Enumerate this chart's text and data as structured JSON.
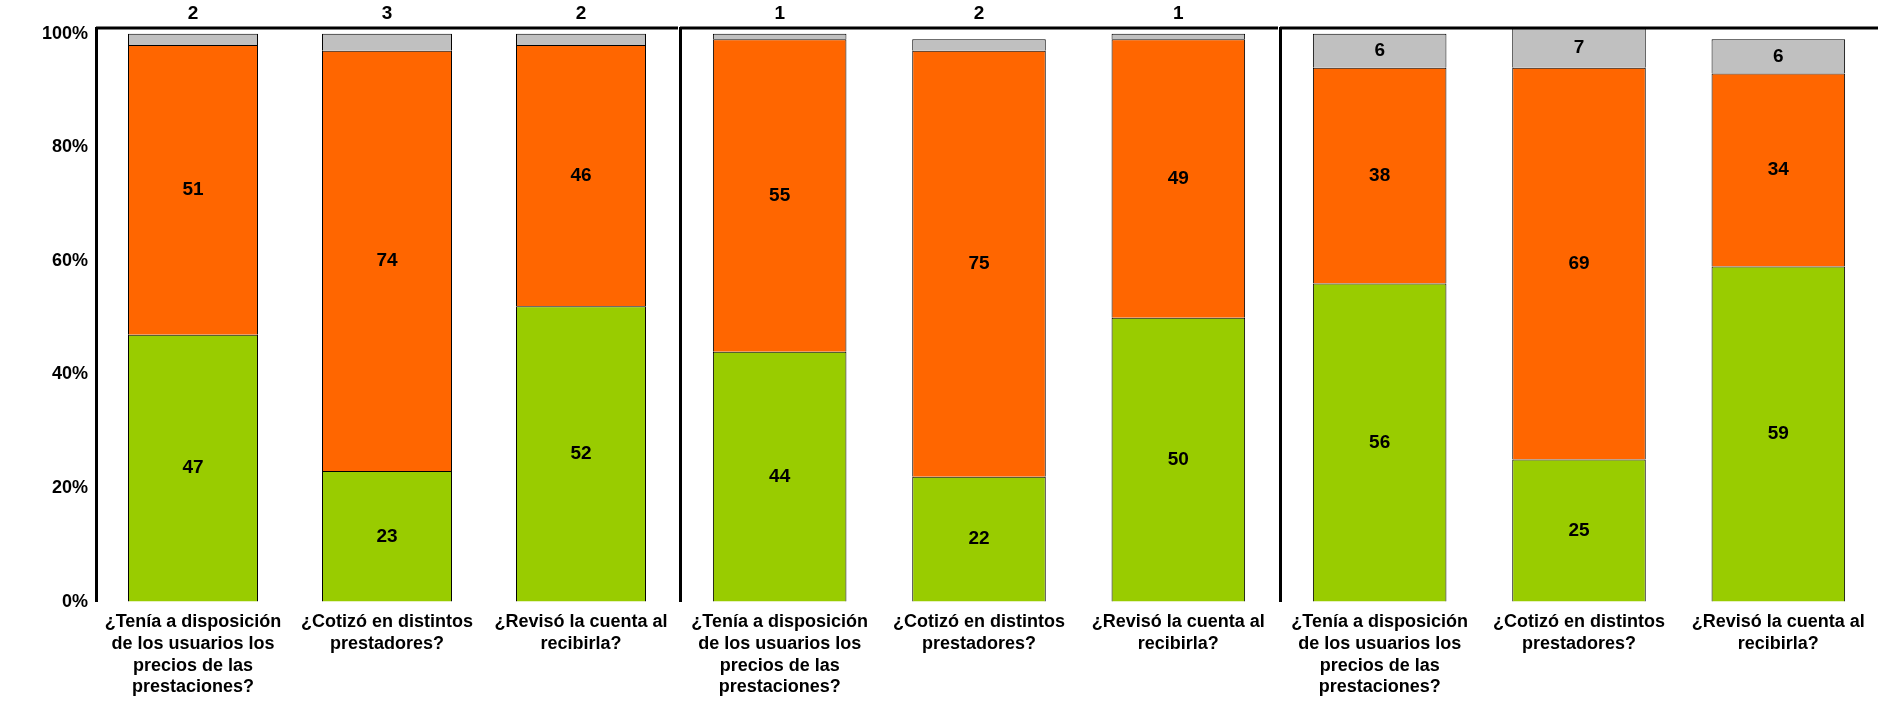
{
  "chart_data": [
    {
      "type": "bar",
      "stacked": true,
      "data_labels": true,
      "categories": [
        "¿Tenía a disposición de los usuarios los precios de las prestaciones?",
        "¿Cotizó en distintos prestadores?",
        "¿Revisó la cuenta al recibirla?"
      ],
      "series": [
        {
          "color": "#99cc00",
          "values": [
            47,
            23,
            52
          ]
        },
        {
          "color": "#ff6600",
          "values": [
            51,
            74,
            46
          ]
        },
        {
          "color": "#c0c0c0",
          "values": [
            2,
            3,
            2
          ]
        }
      ],
      "ylim": [
        0,
        101
      ],
      "yticks": [
        {
          "value": 0,
          "label": "0%"
        },
        {
          "value": 20,
          "label": "20%"
        },
        {
          "value": 40,
          "label": "40%"
        },
        {
          "value": 60,
          "label": "60%"
        },
        {
          "value": 80,
          "label": "80%"
        },
        {
          "value": 100,
          "label": "100%"
        }
      ]
    },
    {
      "type": "bar",
      "stacked": true,
      "data_labels": true,
      "tick_labels": "x",
      "categories": [
        "¿Tenía a disposición de los usuarios los precios de las prestaciones?",
        "¿Cotizó en distintos prestadores?",
        "¿Revisó la cuenta al recibirla?"
      ],
      "series": [
        {
          "color": "#99cc00",
          "values": [
            44,
            22,
            50
          ]
        },
        {
          "color": "#ff6600",
          "values": [
            55,
            75,
            49
          ]
        },
        {
          "color": "#c0c0c0",
          "values": [
            1,
            2,
            1
          ]
        }
      ],
      "ylim": [
        0,
        101
      ]
    },
    {
      "type": "bar",
      "stacked": true,
      "data_labels": true,
      "tick_labels": "x",
      "categories": [
        "¿Tenía a disposición de los usuarios los precios de las prestaciones?",
        "¿Cotizó en distintos prestadores?",
        "¿Revisó la cuenta al recibirla?"
      ],
      "series": [
        {
          "color": "#99cc00",
          "values": [
            56,
            25,
            59
          ]
        },
        {
          "color": "#ff6600",
          "values": [
            38,
            69,
            34
          ]
        },
        {
          "color": "#c0c0c0",
          "values": [
            6,
            7,
            6
          ]
        }
      ],
      "ylim": [
        0,
        101
      ]
    }
  ]
}
